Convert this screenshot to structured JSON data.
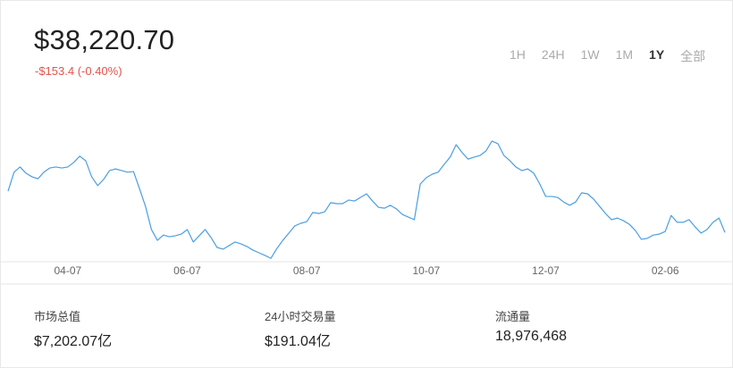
{
  "header": {
    "price": "$38,220.70",
    "change": "-$153.4 (-0.40%)",
    "ranges": [
      "1H",
      "24H",
      "1W",
      "1M",
      "1Y",
      "全部"
    ]
  },
  "chart_data": {
    "type": "line",
    "color": "#4b9fe1",
    "categories": [
      null,
      null,
      null,
      null,
      null,
      null,
      null,
      null,
      null,
      null,
      "04-07",
      null,
      null,
      null,
      null,
      null,
      null,
      null,
      null,
      null,
      null,
      null,
      null,
      null,
      null,
      null,
      null,
      null,
      null,
      null,
      "06-07",
      null,
      null,
      null,
      null,
      null,
      null,
      null,
      null,
      null,
      null,
      null,
      null,
      null,
      null,
      null,
      null,
      null,
      null,
      null,
      "08-07",
      null,
      null,
      null,
      null,
      null,
      null,
      null,
      null,
      null,
      null,
      null,
      null,
      null,
      null,
      null,
      null,
      null,
      null,
      null,
      "10-07",
      null,
      null,
      null,
      null,
      null,
      null,
      null,
      null,
      null,
      null,
      null,
      null,
      null,
      null,
      null,
      null,
      null,
      null,
      null,
      "12-07",
      null,
      null,
      null,
      null,
      null,
      null,
      null,
      null,
      null,
      null,
      null,
      null,
      null,
      null,
      null,
      null,
      null,
      null,
      null,
      "02-06",
      null,
      null,
      null,
      null,
      null,
      null,
      null,
      null,
      null,
      null
    ],
    "values": [
      50800,
      56600,
      58200,
      56300,
      55200,
      54600,
      56600,
      57900,
      58200,
      57900,
      58200,
      59600,
      61500,
      60100,
      55200,
      52500,
      54400,
      57100,
      57600,
      57100,
      56600,
      56800,
      51600,
      46200,
      39100,
      35800,
      37400,
      36900,
      37200,
      37700,
      39100,
      35300,
      37200,
      39100,
      36600,
      33600,
      33100,
      34200,
      35300,
      34700,
      33900,
      32800,
      32000,
      31200,
      30300,
      33300,
      35800,
      38000,
      40200,
      41000,
      41500,
      44300,
      44000,
      44500,
      47300,
      47000,
      47000,
      48100,
      47800,
      48900,
      50000,
      47800,
      45900,
      45600,
      46500,
      45400,
      43700,
      42900,
      42100,
      53000,
      54900,
      56000,
      56600,
      59000,
      61200,
      65000,
      62600,
      60600,
      61200,
      61700,
      63100,
      66100,
      65300,
      61700,
      60100,
      58200,
      57100,
      57600,
      56300,
      53000,
      49200,
      49200,
      48900,
      47500,
      46500,
      47500,
      50300,
      50000,
      48400,
      46200,
      44000,
      42100,
      42600,
      41800,
      40700,
      38800,
      36100,
      36400,
      37400,
      37700,
      38500,
      43400,
      41300,
      41300,
      42100,
      39900,
      38000,
      39100,
      41300,
      42600,
      38200
    ],
    "ylim": [
      29000,
      68000
    ]
  },
  "stats": [
    {
      "label": "市场总值",
      "value": "$7,202.07亿"
    },
    {
      "label": "24小时交易量",
      "value": "$191.04亿"
    },
    {
      "label": "流通量",
      "value": "18,976,468"
    }
  ]
}
